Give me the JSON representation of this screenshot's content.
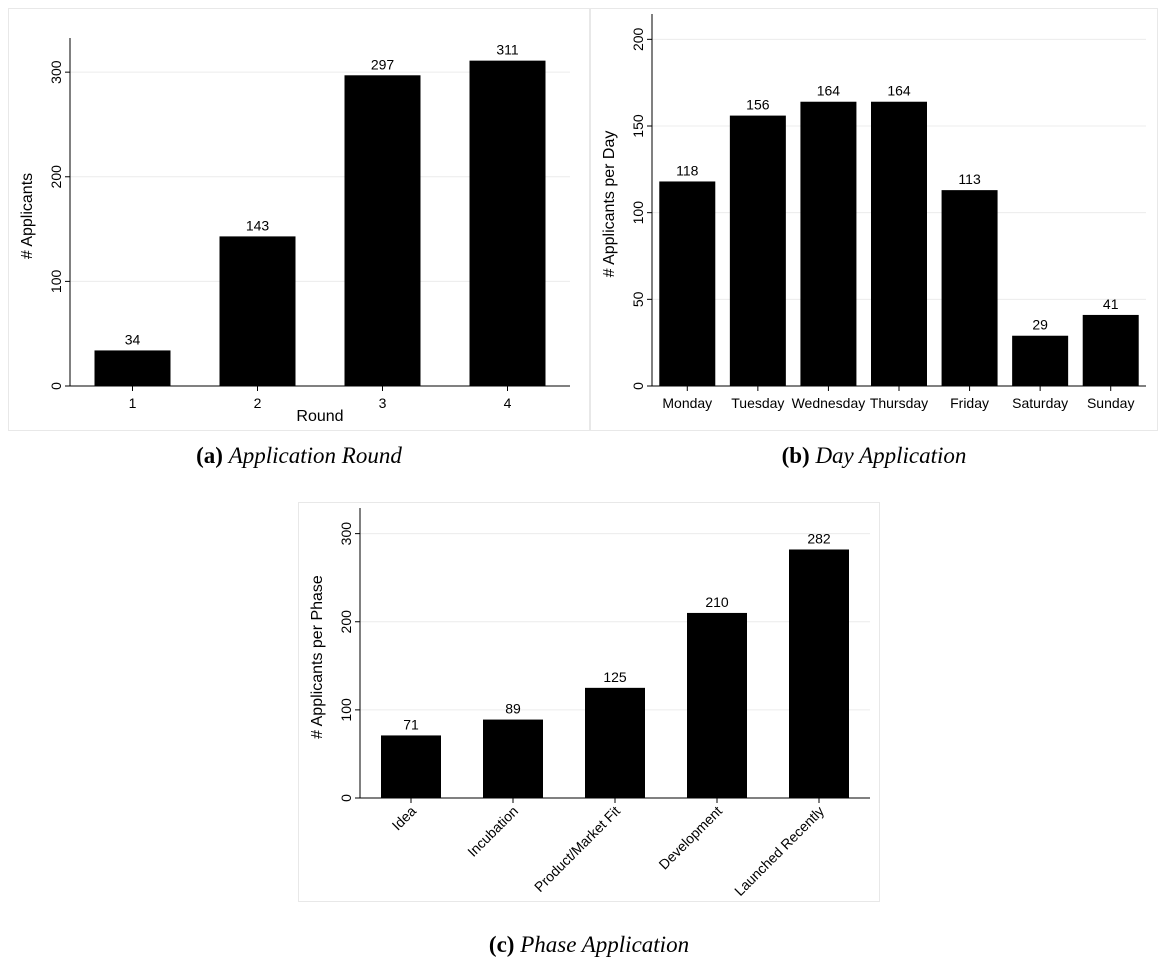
{
  "chart_data": [
    {
      "id": "a",
      "type": "bar",
      "title": "",
      "caption_tag": "(a)",
      "caption_text": "Application Round",
      "xlabel": "Round",
      "ylabel": "# Applicants",
      "categories": [
        "1",
        "2",
        "3",
        "4"
      ],
      "values": [
        34,
        143,
        297,
        311
      ],
      "ylim": [
        0,
        325
      ],
      "yticks": [
        0,
        100,
        200,
        300
      ],
      "grid": true,
      "bar_color": "#000000"
    },
    {
      "id": "b",
      "type": "bar",
      "title": "",
      "caption_tag": "(b)",
      "caption_text": "Day Application",
      "xlabel": "",
      "ylabel": "# Applicants per Day",
      "categories": [
        "Monday",
        "Tuesday",
        "Wednesday",
        "Thursday",
        "Friday",
        "Saturday",
        "Sunday"
      ],
      "values": [
        118,
        156,
        164,
        164,
        113,
        29,
        41
      ],
      "ylim": [
        0,
        210
      ],
      "yticks": [
        0,
        50,
        100,
        150,
        200
      ],
      "grid": true,
      "bar_color": "#000000"
    },
    {
      "id": "c",
      "type": "bar",
      "title": "",
      "caption_tag": "(c)",
      "caption_text": "Phase Application",
      "xlabel": "",
      "ylabel": "# Applicants per Phase",
      "categories": [
        "Idea",
        "Incubation",
        "Product/Market Fit",
        "Development",
        "Launched Recently"
      ],
      "values": [
        71,
        89,
        125,
        210,
        282
      ],
      "ylim": [
        0,
        320
      ],
      "yticks": [
        0,
        100,
        200,
        300
      ],
      "grid": true,
      "bar_color": "#000000"
    }
  ]
}
